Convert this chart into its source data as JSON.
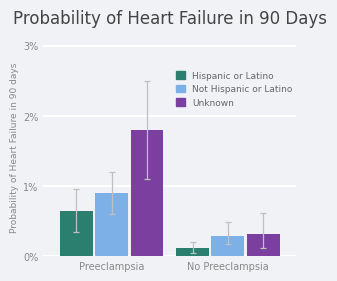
{
  "title": "Probability of Heart Failure in 90 Days",
  "ylabel": "Probability of Heart Failure in 90 days",
  "groups": [
    "Preeclampsia",
    "No Preeclampsia"
  ],
  "categories": [
    "Hispanic or Latino",
    "Not Hispanic or Latino",
    "Unknown"
  ],
  "bar_colors": [
    "#2a7f6f",
    "#7eb0e8",
    "#7b3fa0"
  ],
  "bar_width": 0.13,
  "values": [
    [
      0.0065,
      0.009,
      0.018
    ],
    [
      0.0012,
      0.0028,
      0.0032
    ]
  ],
  "errors_lo": [
    [
      0.003,
      0.003,
      0.007
    ],
    [
      0.0008,
      0.001,
      0.002
    ]
  ],
  "errors_hi": [
    [
      0.003,
      0.003,
      0.007
    ],
    [
      0.0008,
      0.002,
      0.003
    ]
  ],
  "error_color": "#c0c0c0",
  "ylim": [
    0,
    0.031
  ],
  "yticks": [
    0.0,
    0.01,
    0.02,
    0.03
  ],
  "yticklabels": [
    "0%",
    "1%",
    "2%",
    "3%"
  ],
  "background_color": "#f0f2f5",
  "grid_color": "#ffffff",
  "title_fontsize": 12,
  "axis_fontsize": 6.5,
  "tick_fontsize": 7,
  "legend_fontsize": 6.5,
  "group_positions": [
    0.27,
    0.73
  ],
  "offsets": [
    -0.14,
    0.0,
    0.14
  ]
}
